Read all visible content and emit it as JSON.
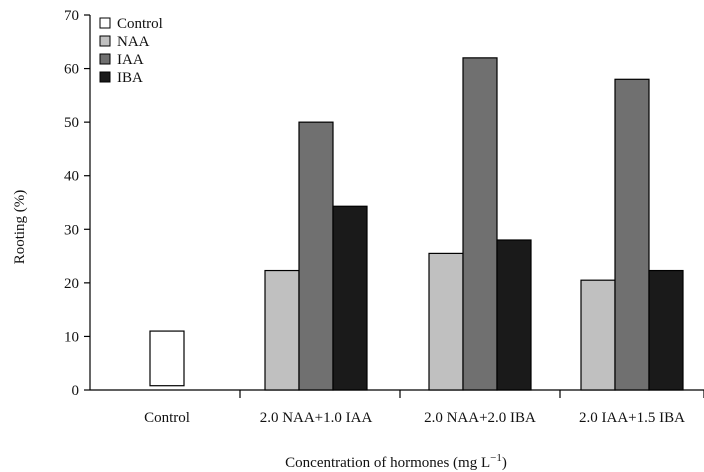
{
  "chart_data": {
    "type": "bar",
    "title": "",
    "xlabel": "Concentration of hormones (mg L",
    "xlabel_unit_exp": "−1",
    "xlabel_close": ")",
    "ylabel": "Rooting (%)",
    "ylim": [
      0,
      70
    ],
    "yticks": [
      0,
      10,
      20,
      30,
      40,
      50,
      60,
      70
    ],
    "grid": false,
    "legend_position": "top-left",
    "categories": [
      "Control",
      "2.0 NAA+1.0 IAA",
      "2.0 NAA+2.0 IBA",
      "2.0 IAA+1.5 IBA"
    ],
    "series": [
      {
        "name": "Control",
        "color": "#ffffff",
        "values": [
          11,
          null,
          null,
          null
        ],
        "base": [
          0.8,
          null,
          null,
          null
        ]
      },
      {
        "name": "NAA",
        "color": "#c0c0c0",
        "values": [
          null,
          22.3,
          25.5,
          20.5
        ]
      },
      {
        "name": "IAA",
        "color": "#707070",
        "values": [
          null,
          50,
          62,
          58
        ]
      },
      {
        "name": "IBA",
        "color": "#1a1a1a",
        "values": [
          null,
          34.3,
          28,
          22.3
        ]
      }
    ]
  }
}
